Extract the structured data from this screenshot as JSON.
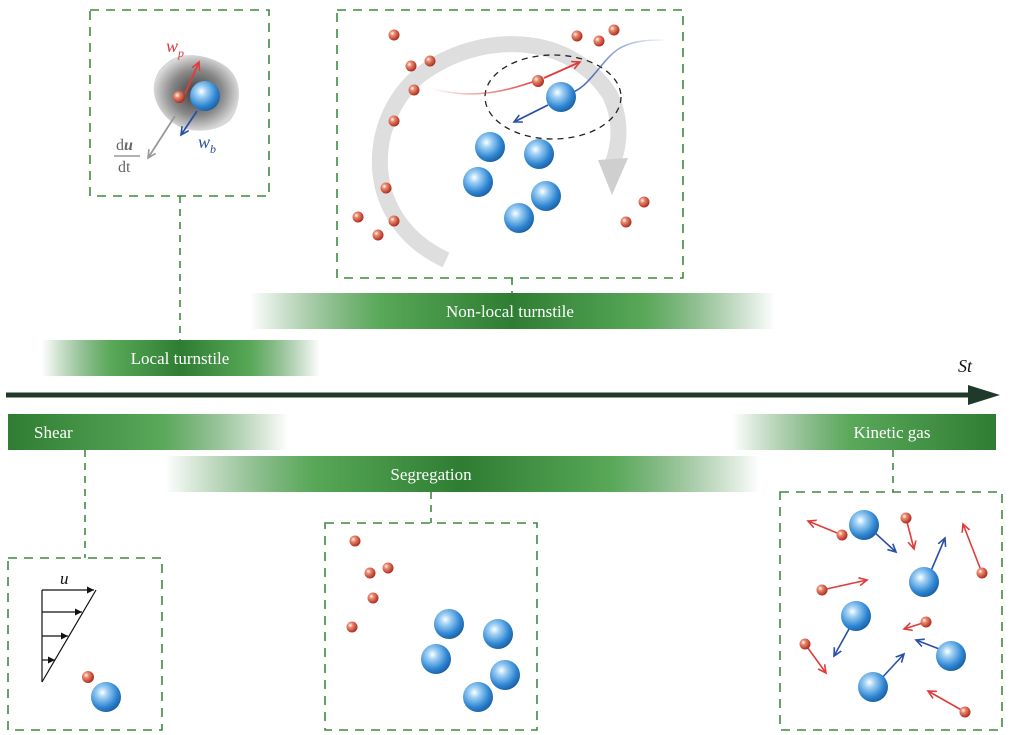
{
  "axis": {
    "label": "St"
  },
  "bands": {
    "local_turnstile": "Local turnstile",
    "non_local_turnstile": "Non-local turnstile",
    "shear": "Shear",
    "segregation": "Segregation",
    "kinetic_gas": "Kinetic gas"
  },
  "panel_local": {
    "wp_main": "w",
    "wp_sub": "p",
    "wb_main": "w",
    "wb_sub": "b",
    "du_num_d": "d",
    "du_num_u": "u",
    "du_den": "dt"
  },
  "panel_shear": {
    "u_label": "u"
  },
  "colors": {
    "band_green": "#2e7d32",
    "panel_dash": "#3f8a3f",
    "axis": "#1f3a2a",
    "particle_red": "#c0392b",
    "bubble_blue": "#3b8fd6",
    "arrow_red": "#e03c3c",
    "arrow_blue": "#2a4fa8"
  }
}
